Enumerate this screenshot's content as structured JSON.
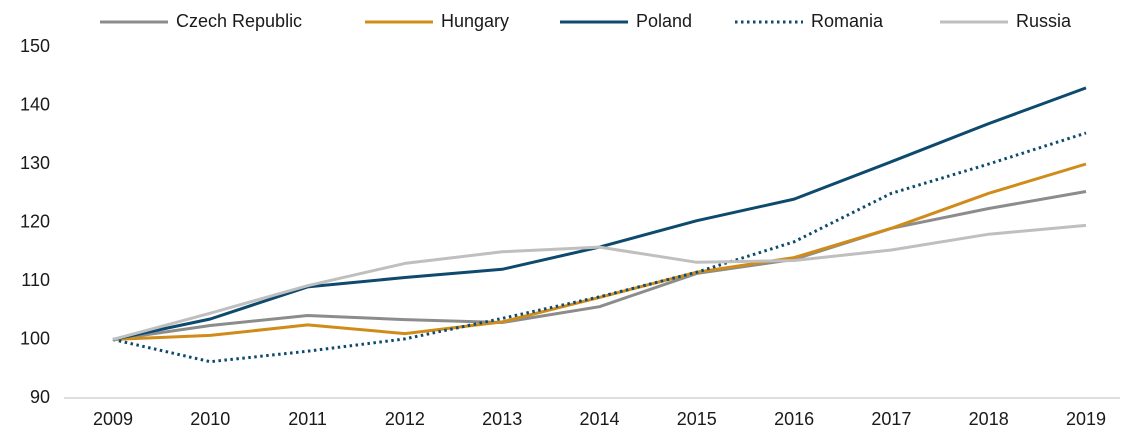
{
  "chart_data": {
    "type": "line",
    "categories": [
      "2009",
      "2010",
      "2011",
      "2012",
      "2013",
      "2014",
      "2015",
      "2016",
      "2017",
      "2018",
      "2019"
    ],
    "series": [
      {
        "name": "Czech Republic",
        "color": "#8c8c8c",
        "dash": "solid",
        "values": [
          100,
          102.4,
          104.1,
          103.4,
          102.9,
          105.6,
          111.3,
          113.7,
          119,
          122.4,
          125.3
        ]
      },
      {
        "name": "Hungary",
        "color": "#d08c1a",
        "dash": "solid",
        "values": [
          100,
          100.7,
          102.5,
          101,
          103,
          107.2,
          111.5,
          114,
          119,
          125,
          130
        ]
      },
      {
        "name": "Poland",
        "color": "#0d4a6e",
        "dash": "solid",
        "values": [
          100,
          103.5,
          109,
          110.6,
          112,
          115.8,
          120.3,
          124,
          130.4,
          136.9,
          143
        ]
      },
      {
        "name": "Romania",
        "color": "#0d4a6e",
        "dash": "dotted",
        "values": [
          100,
          96.2,
          98,
          100.1,
          103.6,
          107.3,
          111.5,
          116.7,
          125,
          130,
          135.3
        ]
      },
      {
        "name": "Russia",
        "color": "#bfbfbf",
        "dash": "solid",
        "values": [
          100,
          104.5,
          109.2,
          113,
          115,
          115.8,
          113.2,
          113.5,
          115.3,
          118,
          119.5
        ]
      }
    ],
    "ylim": [
      90,
      150
    ],
    "yticks": [
      90,
      100,
      110,
      120,
      130,
      140,
      150
    ],
    "legend": "top"
  }
}
